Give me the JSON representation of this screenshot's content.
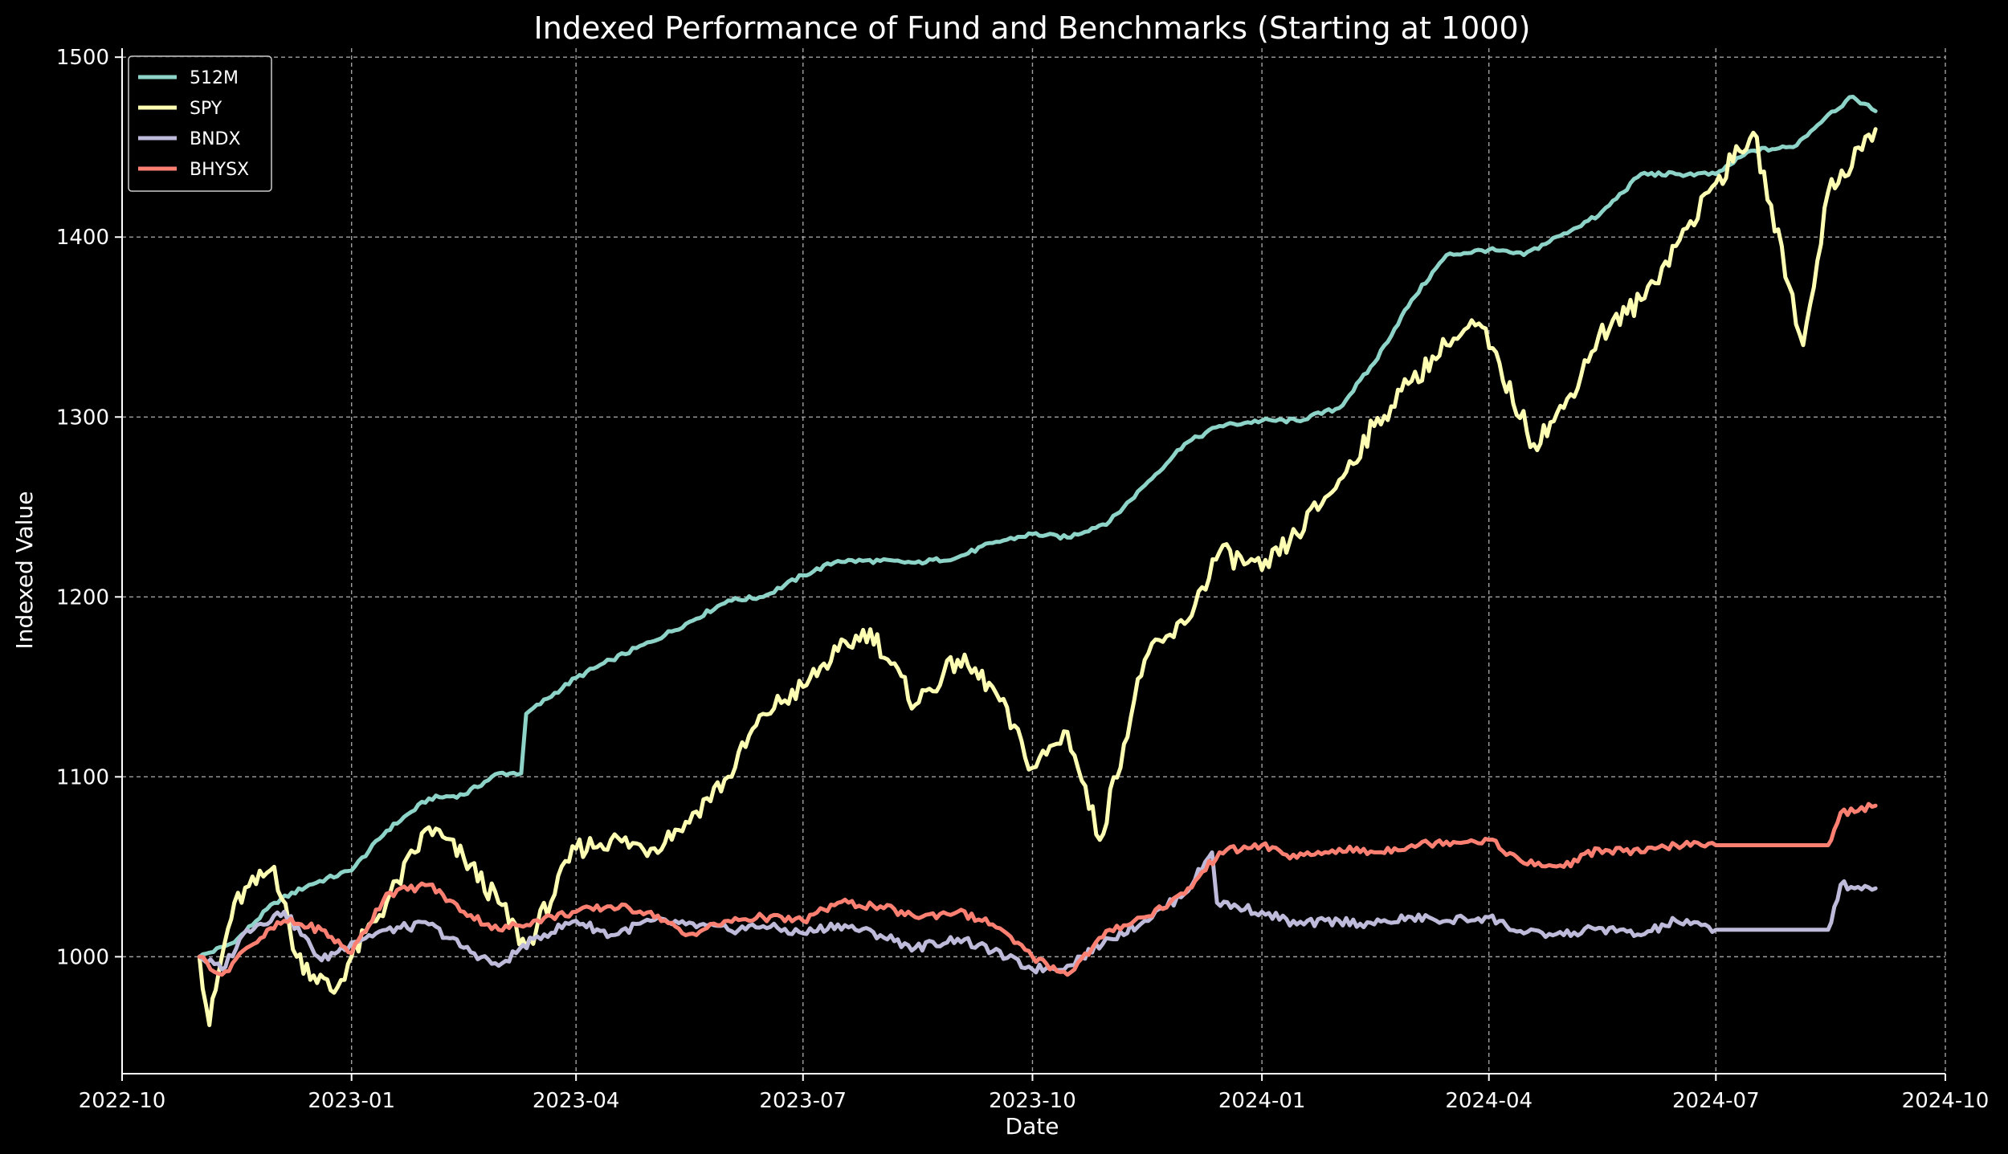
{
  "chart_data": {
    "type": "line",
    "title": "Indexed Performance of Fund and Benchmarks (Starting at 1000)",
    "xlabel": "Date",
    "ylabel": "Indexed Value",
    "x_ticks": [
      "2022-10",
      "2023-01",
      "2023-04",
      "2023-07",
      "2023-10",
      "2024-01",
      "2024-04",
      "2024-07",
      "2024-10"
    ],
    "y_ticks": [
      1000,
      1100,
      1200,
      1300,
      1400,
      1500
    ],
    "xlim": [
      "2022-10-01",
      "2024-10-01"
    ],
    "ylim": [
      935,
      1505
    ],
    "grid": true,
    "legend_position": "top-left",
    "series": [
      {
        "name": "512M",
        "color": "#8dd3c7",
        "points": [
          [
            "2022-11-01",
            1000
          ],
          [
            "2022-11-15",
            1008
          ],
          [
            "2022-12-01",
            1030
          ],
          [
            "2022-12-15",
            1040
          ],
          [
            "2023-01-01",
            1048
          ],
          [
            "2023-01-15",
            1070
          ],
          [
            "2023-02-01",
            1088
          ],
          [
            "2023-02-15",
            1090
          ],
          [
            "2023-03-01",
            1102
          ],
          [
            "2023-03-10",
            1102
          ],
          [
            "2023-03-12",
            1135
          ],
          [
            "2023-04-01",
            1155
          ],
          [
            "2023-04-15",
            1165
          ],
          [
            "2023-05-01",
            1175
          ],
          [
            "2023-05-15",
            1185
          ],
          [
            "2023-06-01",
            1198
          ],
          [
            "2023-06-15",
            1200
          ],
          [
            "2023-07-01",
            1212
          ],
          [
            "2023-07-15",
            1220
          ],
          [
            "2023-08-01",
            1220
          ],
          [
            "2023-08-15",
            1219
          ],
          [
            "2023-09-01",
            1222
          ],
          [
            "2023-09-15",
            1230
          ],
          [
            "2023-10-01",
            1235
          ],
          [
            "2023-10-15",
            1233
          ],
          [
            "2023-11-01",
            1242
          ],
          [
            "2023-11-15",
            1262
          ],
          [
            "2023-12-01",
            1285
          ],
          [
            "2023-12-15",
            1295
          ],
          [
            "2024-01-01",
            1298
          ],
          [
            "2024-01-15",
            1298
          ],
          [
            "2024-02-01",
            1305
          ],
          [
            "2024-02-15",
            1330
          ],
          [
            "2024-03-01",
            1365
          ],
          [
            "2024-03-15",
            1390
          ],
          [
            "2024-04-01",
            1393
          ],
          [
            "2024-04-15",
            1390
          ],
          [
            "2024-05-01",
            1402
          ],
          [
            "2024-05-15",
            1412
          ],
          [
            "2024-06-01",
            1435
          ],
          [
            "2024-06-15",
            1435
          ],
          [
            "2024-07-01",
            1435
          ],
          [
            "2024-07-15",
            1448
          ],
          [
            "2024-08-01",
            1450
          ],
          [
            "2024-08-15",
            1468
          ],
          [
            "2024-08-25",
            1478
          ],
          [
            "2024-09-03",
            1470
          ]
        ]
      },
      {
        "name": "SPY",
        "color": "#ffffb3",
        "points": [
          [
            "2022-11-01",
            1000
          ],
          [
            "2022-11-05",
            962
          ],
          [
            "2022-11-10",
            1000
          ],
          [
            "2022-11-15",
            1030
          ],
          [
            "2022-12-01",
            1050
          ],
          [
            "2022-12-10",
            1000
          ],
          [
            "2022-12-25",
            980
          ],
          [
            "2023-01-01",
            1000
          ],
          [
            "2023-01-15",
            1030
          ],
          [
            "2023-02-01",
            1072
          ],
          [
            "2023-02-15",
            1055
          ],
          [
            "2023-03-01",
            1030
          ],
          [
            "2023-03-12",
            1005
          ],
          [
            "2023-04-01",
            1060
          ],
          [
            "2023-04-15",
            1065
          ],
          [
            "2023-05-01",
            1060
          ],
          [
            "2023-05-15",
            1075
          ],
          [
            "2023-06-01",
            1100
          ],
          [
            "2023-06-15",
            1135
          ],
          [
            "2023-07-01",
            1150
          ],
          [
            "2023-07-15",
            1170
          ],
          [
            "2023-07-28",
            1182
          ],
          [
            "2023-08-15",
            1140
          ],
          [
            "2023-09-01",
            1165
          ],
          [
            "2023-09-15",
            1150
          ],
          [
            "2023-10-01",
            1105
          ],
          [
            "2023-10-15",
            1125
          ],
          [
            "2023-10-28",
            1065
          ],
          [
            "2023-11-15",
            1165
          ],
          [
            "2023-12-01",
            1185
          ],
          [
            "2023-12-15",
            1225
          ],
          [
            "2024-01-01",
            1215
          ],
          [
            "2024-01-15",
            1235
          ],
          [
            "2024-02-01",
            1265
          ],
          [
            "2024-02-15",
            1295
          ],
          [
            "2024-03-01",
            1320
          ],
          [
            "2024-03-15",
            1340
          ],
          [
            "2024-03-28",
            1352
          ],
          [
            "2024-04-19",
            1285
          ],
          [
            "2024-05-01",
            1305
          ],
          [
            "2024-05-15",
            1345
          ],
          [
            "2024-06-01",
            1365
          ],
          [
            "2024-06-15",
            1395
          ],
          [
            "2024-07-01",
            1430
          ],
          [
            "2024-07-16",
            1458
          ],
          [
            "2024-08-05",
            1340
          ],
          [
            "2024-08-15",
            1425
          ],
          [
            "2024-09-03",
            1460
          ]
        ]
      },
      {
        "name": "BNDX",
        "color": "#bebada",
        "points": [
          [
            "2022-11-01",
            1000
          ],
          [
            "2022-11-10",
            993
          ],
          [
            "2022-11-20",
            1015
          ],
          [
            "2022-12-05",
            1025
          ],
          [
            "2022-12-20",
            998
          ],
          [
            "2023-01-01",
            1008
          ],
          [
            "2023-01-15",
            1015
          ],
          [
            "2023-02-01",
            1018
          ],
          [
            "2023-02-15",
            1005
          ],
          [
            "2023-03-01",
            995
          ],
          [
            "2023-03-15",
            1010
          ],
          [
            "2023-04-01",
            1020
          ],
          [
            "2023-04-15",
            1012
          ],
          [
            "2023-05-01",
            1020
          ],
          [
            "2023-05-15",
            1018
          ],
          [
            "2023-06-01",
            1015
          ],
          [
            "2023-06-15",
            1017
          ],
          [
            "2023-07-01",
            1013
          ],
          [
            "2023-07-15",
            1018
          ],
          [
            "2023-08-01",
            1012
          ],
          [
            "2023-08-15",
            1005
          ],
          [
            "2023-09-01",
            1010
          ],
          [
            "2023-09-15",
            1003
          ],
          [
            "2023-10-01",
            993
          ],
          [
            "2023-10-15",
            995
          ],
          [
            "2023-11-01",
            1010
          ],
          [
            "2023-11-15",
            1020
          ],
          [
            "2023-12-01",
            1035
          ],
          [
            "2023-12-12",
            1058
          ],
          [
            "2023-12-14",
            1030
          ],
          [
            "2024-01-01",
            1025
          ],
          [
            "2024-01-15",
            1018
          ],
          [
            "2024-02-01",
            1020
          ],
          [
            "2024-02-15",
            1018
          ],
          [
            "2024-03-01",
            1022
          ],
          [
            "2024-03-15",
            1020
          ],
          [
            "2024-04-01",
            1022
          ],
          [
            "2024-04-15",
            1013
          ],
          [
            "2024-05-01",
            1012
          ],
          [
            "2024-05-15",
            1016
          ],
          [
            "2024-06-01",
            1012
          ],
          [
            "2024-06-15",
            1020
          ],
          [
            "2024-07-01",
            1015
          ],
          [
            "2024-08-15",
            1015
          ],
          [
            "2024-08-20",
            1040
          ],
          [
            "2024-09-03",
            1038
          ]
        ]
      },
      {
        "name": "BHYSX",
        "color": "#fb8072",
        "points": [
          [
            "2022-11-01",
            1000
          ],
          [
            "2022-11-10",
            990
          ],
          [
            "2022-11-20",
            1005
          ],
          [
            "2022-12-05",
            1020
          ],
          [
            "2022-12-20",
            1015
          ],
          [
            "2023-01-01",
            1002
          ],
          [
            "2023-01-15",
            1035
          ],
          [
            "2023-02-01",
            1040
          ],
          [
            "2023-02-15",
            1025
          ],
          [
            "2023-03-01",
            1015
          ],
          [
            "2023-03-15",
            1020
          ],
          [
            "2023-04-01",
            1025
          ],
          [
            "2023-04-15",
            1028
          ],
          [
            "2023-05-01",
            1025
          ],
          [
            "2023-05-15",
            1012
          ],
          [
            "2023-06-01",
            1020
          ],
          [
            "2023-06-15",
            1022
          ],
          [
            "2023-07-01",
            1020
          ],
          [
            "2023-07-15",
            1030
          ],
          [
            "2023-08-01",
            1028
          ],
          [
            "2023-08-15",
            1022
          ],
          [
            "2023-09-01",
            1025
          ],
          [
            "2023-09-15",
            1018
          ],
          [
            "2023-10-01",
            1000
          ],
          [
            "2023-10-15",
            990
          ],
          [
            "2023-11-01",
            1015
          ],
          [
            "2023-11-15",
            1022
          ],
          [
            "2023-12-01",
            1035
          ],
          [
            "2023-12-15",
            1058
          ],
          [
            "2024-01-01",
            1062
          ],
          [
            "2024-01-15",
            1055
          ],
          [
            "2024-02-01",
            1060
          ],
          [
            "2024-02-15",
            1058
          ],
          [
            "2024-03-01",
            1062
          ],
          [
            "2024-03-15",
            1064
          ],
          [
            "2024-04-01",
            1065
          ],
          [
            "2024-04-15",
            1052
          ],
          [
            "2024-05-01",
            1050
          ],
          [
            "2024-05-15",
            1060
          ],
          [
            "2024-06-01",
            1058
          ],
          [
            "2024-06-15",
            1062
          ],
          [
            "2024-07-01",
            1062
          ],
          [
            "2024-08-15",
            1062
          ],
          [
            "2024-08-20",
            1080
          ],
          [
            "2024-09-03",
            1084
          ]
        ]
      }
    ]
  }
}
